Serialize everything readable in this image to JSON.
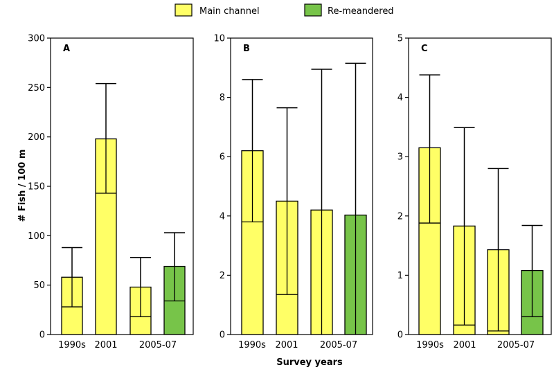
{
  "legend": [
    {
      "label": "Main channel",
      "color": "#ffff66"
    },
    {
      "label": "Re-meandered",
      "color": "#77c449"
    }
  ],
  "ylabel": "# Fish / 100 m",
  "xlabel": "Survey years",
  "chart_data": [
    {
      "type": "bar",
      "panel": "A",
      "ylim": [
        0,
        300
      ],
      "yticks": [
        0,
        50,
        100,
        150,
        200,
        250,
        300
      ],
      "x_tick_labels": [
        "1990s",
        "2001",
        "2005-07"
      ],
      "bars": [
        {
          "category": "1990s",
          "series": "Main channel",
          "value": 58,
          "inner_line": 28,
          "error_top": 88
        },
        {
          "category": "2001",
          "series": "Main channel",
          "value": 198,
          "inner_line": 143,
          "error_top": 254
        },
        {
          "category": "2005-07",
          "series": "Main channel",
          "value": 48,
          "inner_line": 18,
          "error_top": 78
        },
        {
          "category": "2005-07",
          "series": "Re-meandered",
          "value": 69,
          "inner_line": 34,
          "error_top": 103
        }
      ]
    },
    {
      "type": "bar",
      "panel": "B",
      "ylim": [
        0,
        10
      ],
      "yticks": [
        0,
        2,
        4,
        6,
        8,
        10
      ],
      "x_tick_labels": [
        "1990s",
        "2001",
        "2005-07"
      ],
      "bars": [
        {
          "category": "1990s",
          "series": "Main channel",
          "value": 6.2,
          "inner_line": 3.8,
          "error_top": 8.6
        },
        {
          "category": "2001",
          "series": "Main channel",
          "value": 4.5,
          "inner_line": 1.35,
          "error_top": 7.65
        },
        {
          "category": "2005-07",
          "series": "Main channel",
          "value": 4.2,
          "inner_line": null,
          "error_top": 8.95
        },
        {
          "category": "2005-07",
          "series": "Re-meandered",
          "value": 4.03,
          "inner_line": null,
          "error_top": 9.15
        }
      ]
    },
    {
      "type": "bar",
      "panel": "C",
      "ylim": [
        0,
        5
      ],
      "yticks": [
        0,
        1,
        2,
        3,
        4,
        5
      ],
      "x_tick_labels": [
        "1990s",
        "2001",
        "2005-07"
      ],
      "bars": [
        {
          "category": "1990s",
          "series": "Main channel",
          "value": 3.15,
          "inner_line": 1.88,
          "error_top": 4.38
        },
        {
          "category": "2001",
          "series": "Main channel",
          "value": 1.83,
          "inner_line": 0.16,
          "error_top": 3.49
        },
        {
          "category": "2005-07",
          "series": "Main channel",
          "value": 1.43,
          "inner_line": 0.06,
          "error_top": 2.8
        },
        {
          "category": "2005-07",
          "series": "Re-meandered",
          "value": 1.08,
          "inner_line": 0.3,
          "error_top": 1.84
        }
      ]
    }
  ]
}
